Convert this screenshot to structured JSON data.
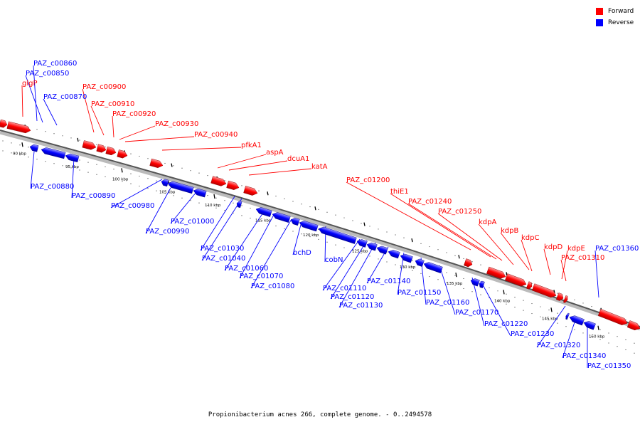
{
  "legend": {
    "forward_label": "Forward",
    "reverse_label": "Reverse",
    "forward_color": "#ff0000",
    "reverse_color": "#0000ff"
  },
  "caption": "Propionibacterium acnes 266, complete genome. - 0..2494578",
  "ticks": [
    "90 kbp",
    "95 kbp",
    "100 kbp",
    "105 kbp",
    "110 kbp",
    "115 kbp",
    "120 kbp",
    "125 kbp",
    "130 kbp",
    "135 kbp",
    "140 kbp",
    "145 kbp",
    "150 kbp"
  ],
  "forward_labels": [
    "glgP",
    "PAZ_c00900",
    "PAZ_c00910",
    "PAZ_c00920",
    "PAZ_c00930",
    "PAZ_c00940",
    "pfkA1",
    "aspA",
    "dcuA1",
    "katA",
    "PAZ_c01200",
    "thiE1",
    "PAZ_c01240",
    "PAZ_c01250",
    "kdpA",
    "kdpB",
    "kdpC",
    "kdpD",
    "kdpE",
    "PAZ_c01310"
  ],
  "reverse_labels": [
    "PAZ_c00860",
    "PAZ_c00850",
    "PAZ_c00870",
    "PAZ_c00880",
    "PAZ_c00890",
    "PAZ_c00980",
    "PAZ_c00990",
    "PAZ_c01000",
    "PAZ_c01030",
    "PAZ_c01040",
    "PAZ_c01060",
    "PAZ_c01070",
    "PAZ_c01080",
    "bchD",
    "cobN",
    "PAZ_c01110",
    "PAZ_c01120",
    "PAZ_c01130",
    "PAZ_c01140",
    "PAZ_c01150",
    "PAZ_c01160",
    "PAZ_c01170",
    "PAZ_c01220",
    "PAZ_c01230",
    "PAZ_c01320",
    "PAZ_c01340",
    "PAZ_c01350",
    "PAZ_c01360"
  ]
}
